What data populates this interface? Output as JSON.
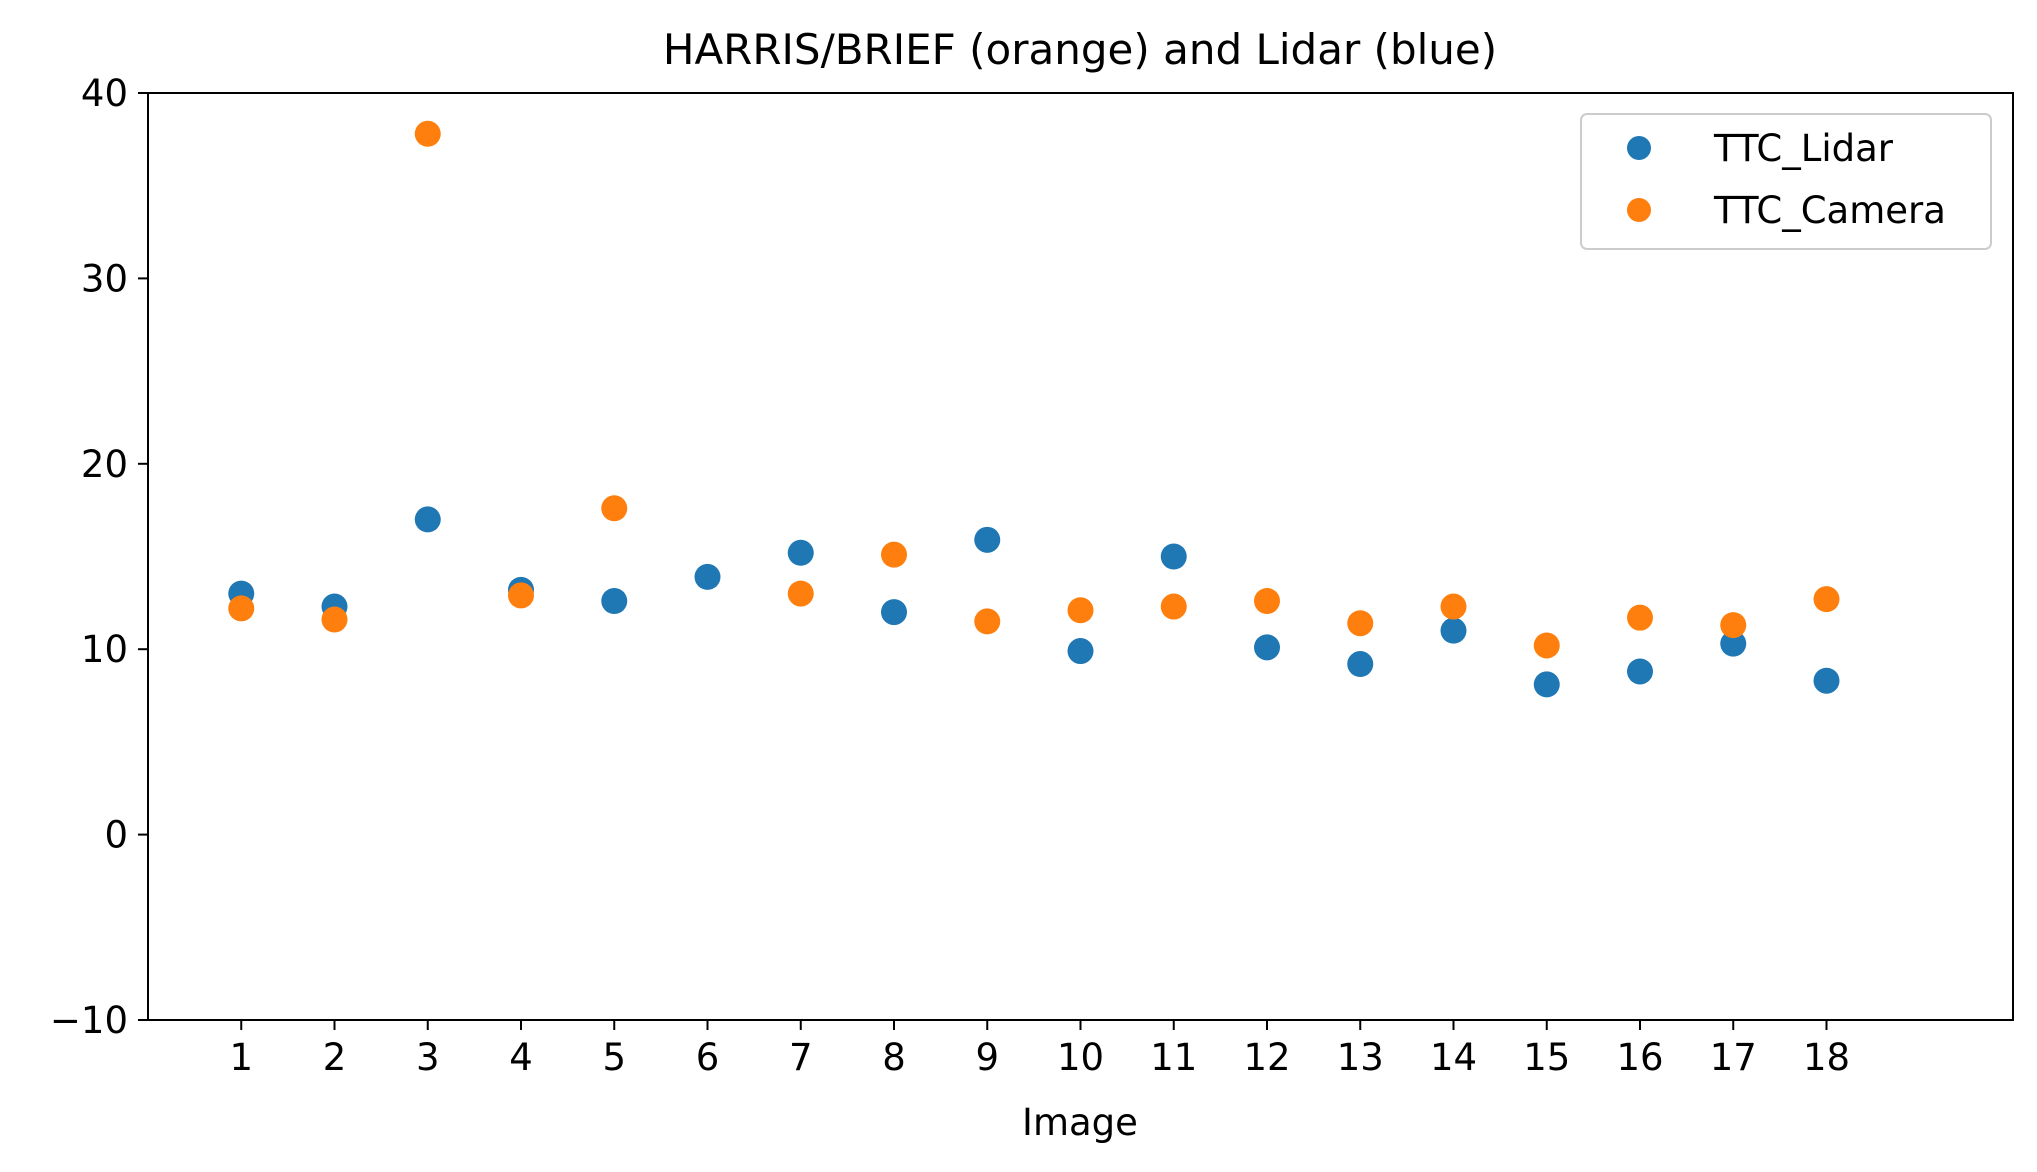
{
  "chart_data": {
    "type": "scatter",
    "title": "HARRIS/BRIEF (orange) and Lidar (blue)",
    "xlabel": "Image",
    "ylabel": "",
    "x": [
      1,
      2,
      3,
      4,
      5,
      6,
      7,
      8,
      9,
      10,
      11,
      12,
      13,
      14,
      15,
      16,
      17,
      18
    ],
    "xticks": [
      "1",
      "2",
      "3",
      "4",
      "5",
      "6",
      "7",
      "8",
      "9",
      "10",
      "11",
      "12",
      "13",
      "14",
      "15",
      "16",
      "17",
      "18"
    ],
    "xlim": [
      0,
      20
    ],
    "ylim": [
      -10,
      40
    ],
    "yticks": [
      "−10",
      "0",
      "10",
      "20",
      "30",
      "40"
    ],
    "ytick_values": [
      -10,
      0,
      10,
      20,
      30,
      40
    ],
    "grid": false,
    "legend_position": "top-right",
    "series": [
      {
        "name": "TTC_Lidar",
        "color": "#1f77b4",
        "values": [
          13.0,
          12.3,
          17.0,
          13.2,
          12.6,
          13.9,
          15.2,
          12.0,
          15.9,
          9.9,
          15.0,
          10.1,
          9.2,
          11.0,
          8.1,
          8.8,
          10.3,
          8.3
        ]
      },
      {
        "name": "TTC_Camera",
        "color": "#ff7f0e",
        "values": [
          12.2,
          11.6,
          37.8,
          12.9,
          17.6,
          null,
          13.0,
          15.1,
          11.5,
          12.1,
          12.3,
          12.6,
          11.4,
          12.3,
          10.2,
          11.7,
          11.3,
          12.7
        ]
      }
    ]
  }
}
